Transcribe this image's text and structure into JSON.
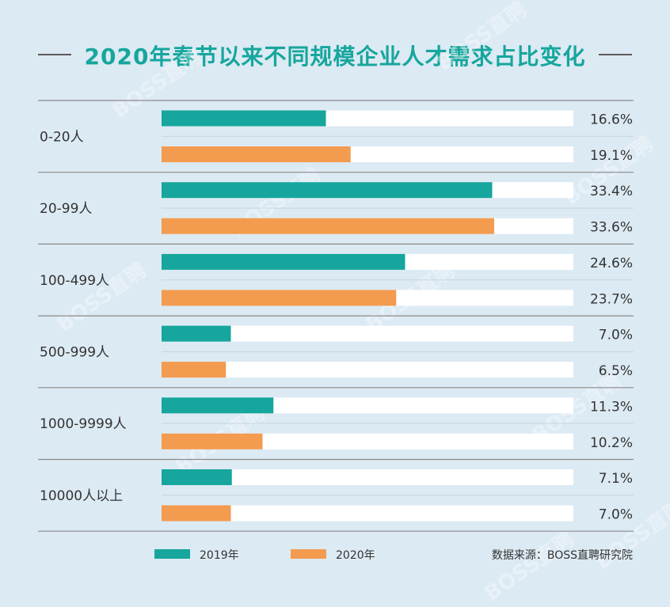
{
  "title": "2020年春节以来不同规模企业人才需求占比变化",
  "source_text": "数据来源：BOSS直聘研究院",
  "watermark_text": "BOSS直聘",
  "colors": {
    "background": "#dceaf3",
    "teal": "#16a69d",
    "orange": "#f39b4f",
    "track": "#ffffff",
    "text": "#333333",
    "rule": "#8a8a8a"
  },
  "chart_data": {
    "type": "bar",
    "orientation": "horizontal",
    "categories": [
      "0-20人",
      "20-99人",
      "100-499人",
      "500-999人",
      "1000-9999人",
      "10000人以上"
    ],
    "series": [
      {
        "name": "2019年",
        "color": "#16a69d",
        "values": [
          16.6,
          33.4,
          24.6,
          7.0,
          11.3,
          7.1
        ],
        "labels": [
          "16.6%",
          "33.4%",
          "24.6%",
          "7.0%",
          "11.3%",
          "7.1%"
        ]
      },
      {
        "name": "2020年",
        "color": "#f39b4f",
        "values": [
          19.1,
          33.6,
          23.7,
          6.5,
          10.2,
          7.0
        ],
        "labels": [
          "19.1%",
          "33.6%",
          "23.7%",
          "6.5%",
          "10.2%",
          "7.0%"
        ]
      }
    ],
    "xlim": [
      0,
      41.6
    ],
    "legend_position": "bottom",
    "grid": false
  }
}
